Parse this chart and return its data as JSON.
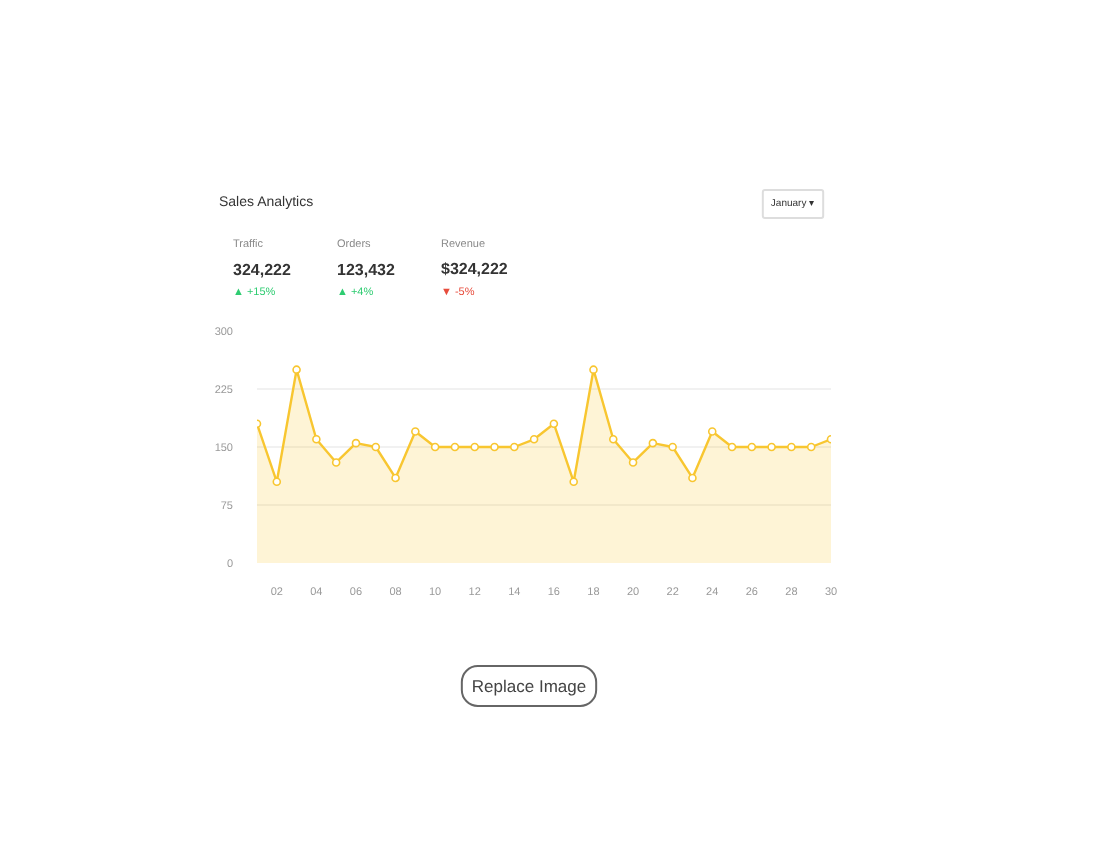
{
  "chart_data": {
    "type": "area",
    "title": "Sales Analytics",
    "annotations": [
      "January ▾",
      "Traffic",
      "324,222",
      "▲ +15%",
      "Orders",
      "123,432",
      "▲ +4%",
      "Revenue",
      "$324,222",
      "▼ -5%",
      "Replace Image"
    ],
    "x": [
      1,
      2,
      3,
      4,
      5,
      6,
      7,
      8,
      9,
      10,
      11,
      12,
      13,
      14,
      15,
      16,
      17,
      18,
      19,
      20,
      21,
      22,
      23,
      24,
      25,
      26,
      27,
      28,
      29,
      30
    ],
    "xlim": [
      1,
      30
    ],
    "xticks": [
      {
        "value": 2,
        "label": "02"
      },
      {
        "value": 4,
        "label": "04"
      },
      {
        "value": 6,
        "label": "06"
      },
      {
        "value": 8,
        "label": "08"
      },
      10,
      12,
      14,
      16,
      18,
      20,
      22,
      24,
      26,
      28,
      30
    ],
    "ylim": [
      0,
      300
    ],
    "yticks": [
      0,
      75,
      150,
      225,
      300
    ],
    "grid": "y",
    "marker": "circle",
    "series": [
      {
        "color": "#f8c630",
        "values": [
          180,
          105,
          250,
          160,
          130,
          155,
          150,
          110,
          170,
          150,
          150,
          150,
          150,
          150,
          160,
          180,
          105,
          250,
          160,
          130,
          155,
          150,
          110,
          170,
          150,
          150,
          150,
          150,
          150,
          160
        ]
      }
    ]
  }
}
